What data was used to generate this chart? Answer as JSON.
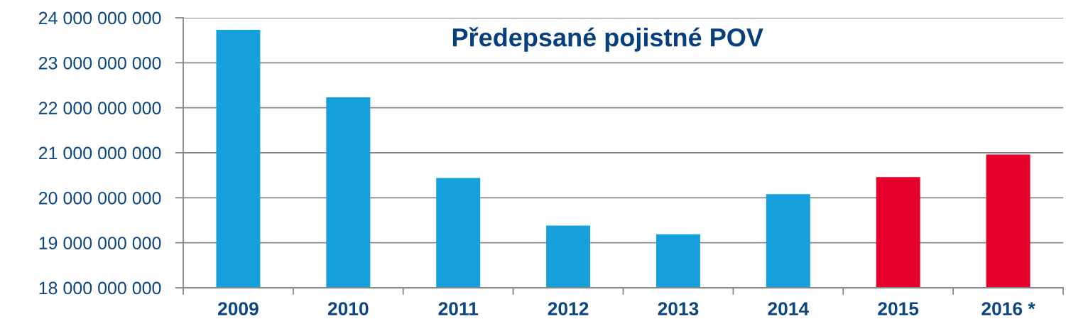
{
  "chart_data": {
    "type": "bar",
    "title": "Předepsané pojistné POV",
    "categories": [
      "2009",
      "2010",
      "2011",
      "2012",
      "2013",
      "2014",
      "2015",
      "2016 *"
    ],
    "values": [
      23730000000,
      22230000000,
      20440000000,
      19380000000,
      19190000000,
      20080000000,
      20460000000,
      20960000000
    ],
    "colors": [
      "#16a0db",
      "#16a0db",
      "#16a0db",
      "#16a0db",
      "#16a0db",
      "#16a0db",
      "#e4002b",
      "#e4002b"
    ],
    "ylim": [
      18000000000,
      24000000000
    ],
    "yticks": [
      {
        "value": 18000000000,
        "label": "18 000 000 000"
      },
      {
        "value": 19000000000,
        "label": "19 000 000 000"
      },
      {
        "value": 20000000000,
        "label": "20 000 000 000"
      },
      {
        "value": 21000000000,
        "label": "21 000 000 000"
      },
      {
        "value": 22000000000,
        "label": "22 000 000 000"
      },
      {
        "value": 23000000000,
        "label": "23 000 000 000"
      },
      {
        "value": 24000000000,
        "label": "24 000 000 000"
      }
    ],
    "grid": "y"
  }
}
